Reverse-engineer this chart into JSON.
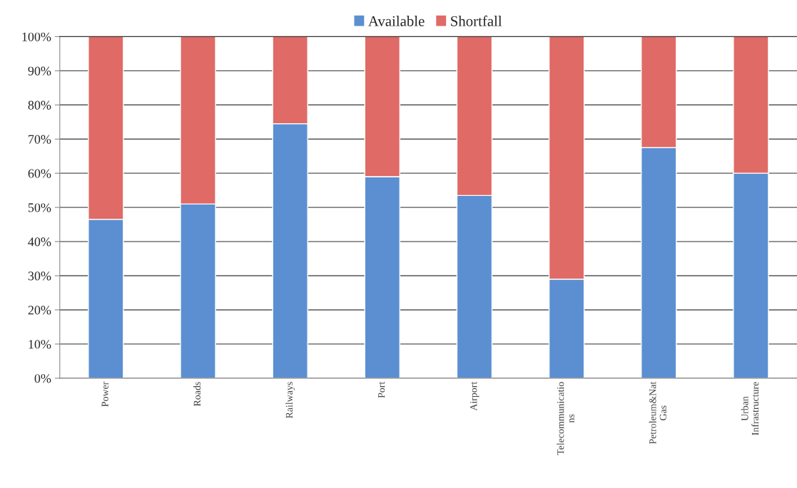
{
  "chart_data": {
    "type": "bar",
    "stacked": true,
    "categories": [
      "Power",
      "Roads",
      "Railways",
      "Port",
      "Airport",
      "Telecommunicatio\nns",
      "Petroleum&Nat\nGas",
      "Urban\nInfrastructure"
    ],
    "series": [
      {
        "name": "Available",
        "color": "#5b8fd1",
        "values": [
          46.5,
          51,
          74.5,
          59,
          53.5,
          29,
          67.5,
          60
        ]
      },
      {
        "name": "Shortfall",
        "color": "#e06a66",
        "values": [
          53.5,
          49,
          25.5,
          41,
          46.5,
          71,
          32.5,
          40
        ]
      }
    ],
    "ylim": [
      0,
      100
    ],
    "yticks": [
      {
        "value": 0,
        "label": "0%"
      },
      {
        "value": 10,
        "label": "10%"
      },
      {
        "value": 20,
        "label": "20%"
      },
      {
        "value": 30,
        "label": "30%"
      },
      {
        "value": 40,
        "label": "40%"
      },
      {
        "value": 50,
        "label": "50%"
      },
      {
        "value": 60,
        "label": "60%"
      },
      {
        "value": 70,
        "label": "70%"
      },
      {
        "value": 80,
        "label": "80%"
      },
      {
        "value": 90,
        "label": "90%"
      },
      {
        "value": 100,
        "label": "100%"
      }
    ],
    "grid": "y",
    "legend": "top"
  }
}
